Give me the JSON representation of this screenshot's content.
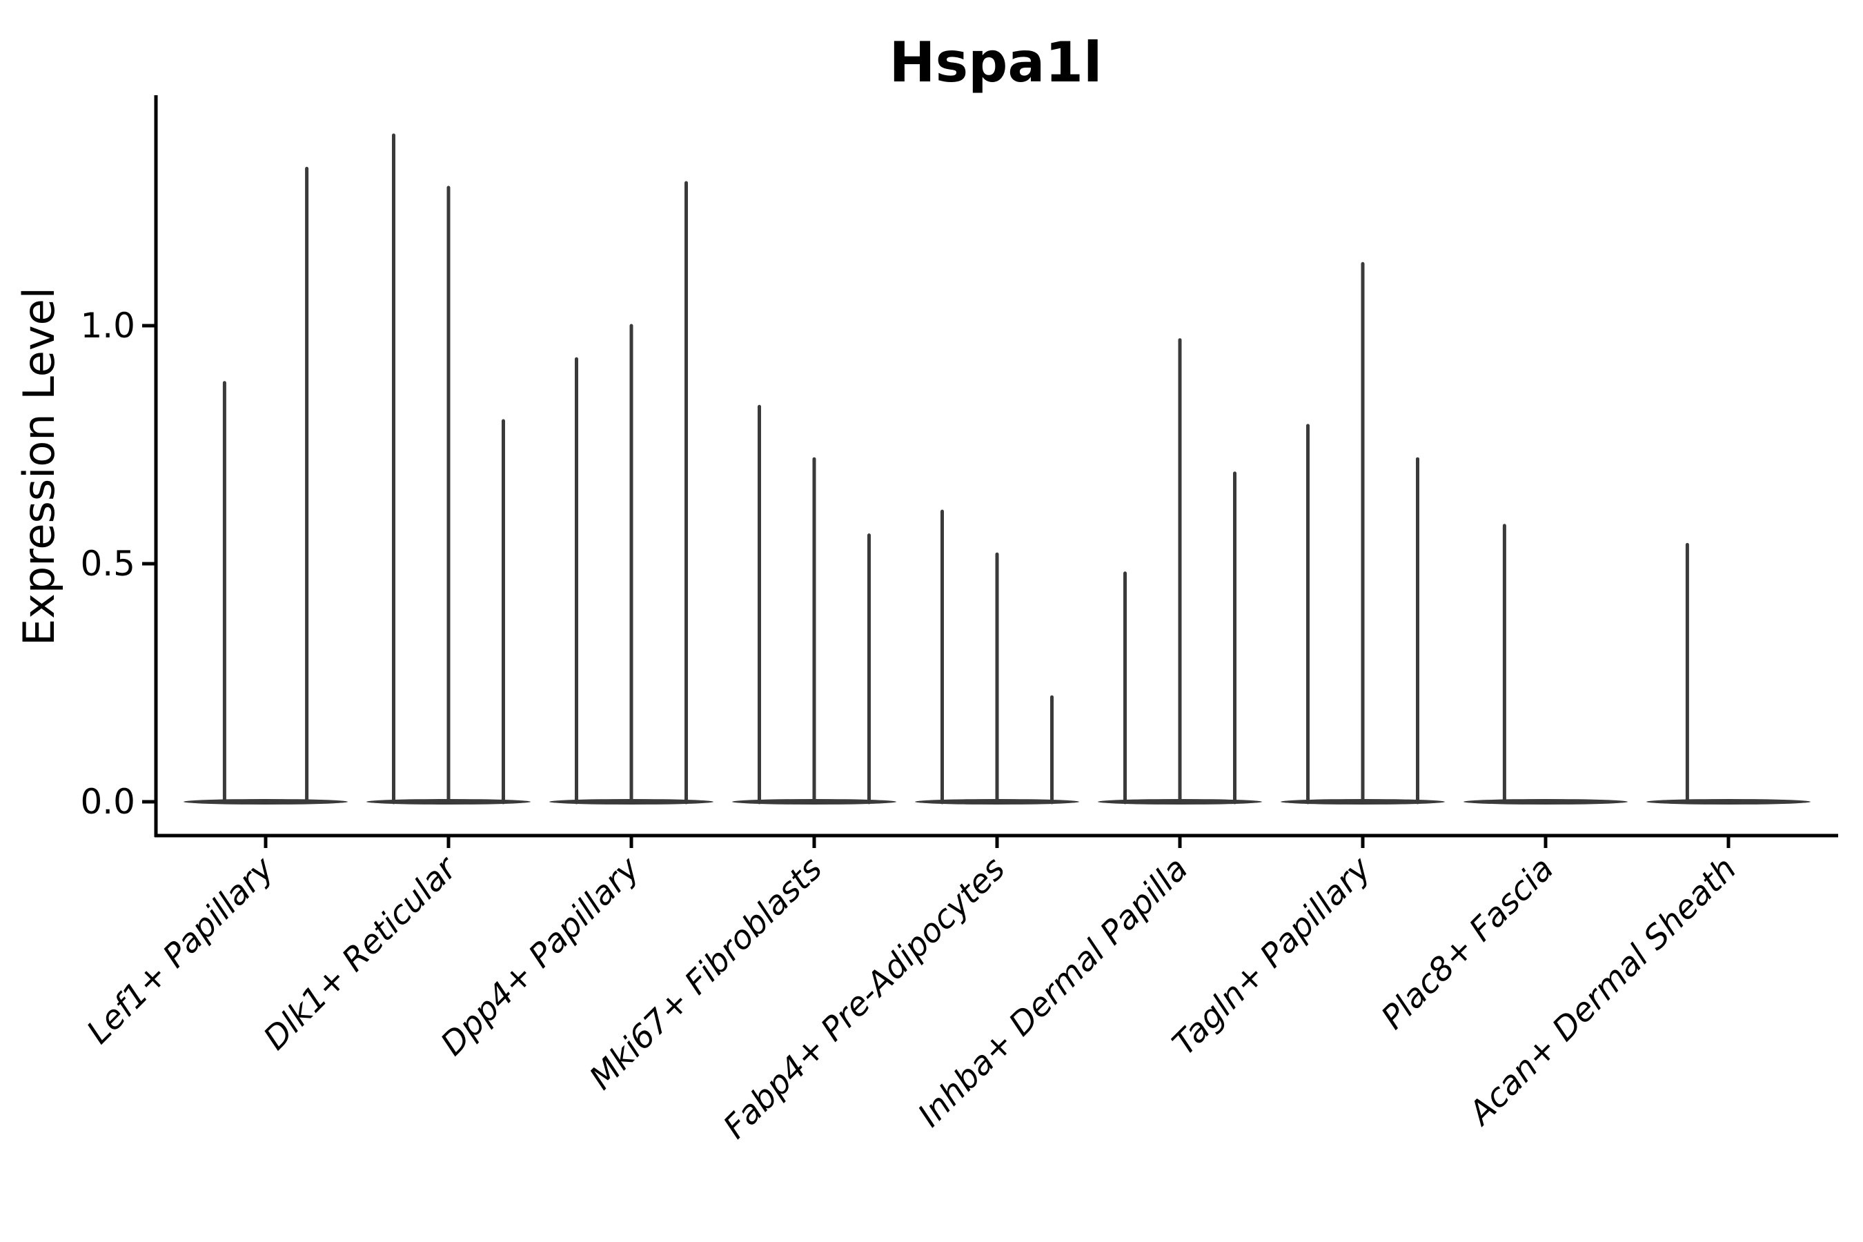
{
  "chart_data": {
    "type": "violin",
    "title": "Hspa1l",
    "ylabel": "Expression Level",
    "xlabel": "",
    "yticks": [
      "0.0",
      "0.5",
      "1.0"
    ],
    "ytick_values": [
      0.0,
      0.5,
      1.0
    ],
    "ylim": [
      -0.07,
      1.47
    ],
    "grid": false,
    "legend_position": "none",
    "style": "thin spike violins (most mass at 0) with flat base at y=0, split/dodged violins per category",
    "categories": [
      {
        "label": "Lef1+ Papillary",
        "violin_max": [
          0.88,
          1.33
        ]
      },
      {
        "label": "Dlk1+ Reticular",
        "violin_max": [
          1.4,
          1.29,
          0.8
        ]
      },
      {
        "label": "Dpp4+ Papillary",
        "violin_max": [
          0.93,
          1.0,
          1.3
        ]
      },
      {
        "label": "Mki67+ Fibroblasts",
        "violin_max": [
          0.83,
          0.72,
          0.56
        ]
      },
      {
        "label": "Fabp4+ Pre-Adipocytes",
        "violin_max": [
          0.61,
          0.52,
          0.22
        ]
      },
      {
        "label": "Inhba+ Dermal Papilla",
        "violin_max": [
          0.48,
          0.97,
          0.69
        ]
      },
      {
        "label": "Tagln+ Papillary",
        "violin_max": [
          0.79,
          1.13,
          0.72
        ]
      },
      {
        "label": "Plac8+ Fascia",
        "violin_max": [
          0.58,
          0.0
        ]
      },
      {
        "label": "Acan+ Dermal Sheath",
        "violin_max": [
          0.54,
          0.0
        ]
      }
    ],
    "colors": {
      "violin_stroke": "#3a3a3a",
      "axis": "#000000",
      "text": "#000000",
      "background": "#ffffff"
    }
  }
}
